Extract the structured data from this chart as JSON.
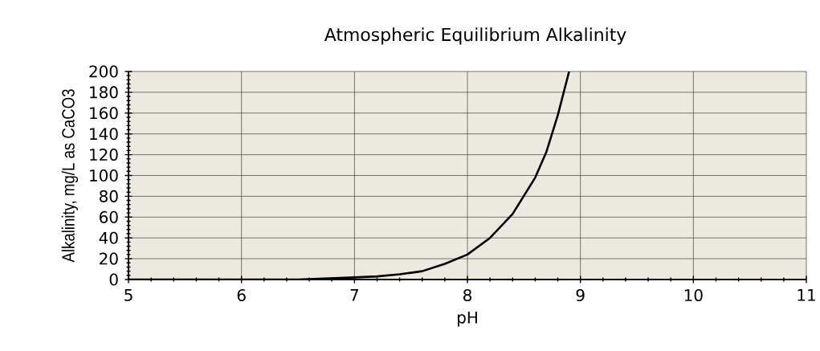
{
  "chart_data": {
    "type": "line",
    "title": "Atmospheric Equilibrium Alkalinity",
    "xlabel": "pH",
    "ylabel": "Alkalinity, mg/L as CaCO3",
    "x": [
      5,
      6,
      6.5,
      7,
      7.2,
      7.4,
      7.6,
      7.8,
      8,
      8.2,
      8.4,
      8.6,
      8.7,
      8.8,
      8.9
    ],
    "values": [
      0,
      0,
      0,
      2,
      3,
      5,
      8,
      15,
      24,
      40,
      63,
      98,
      123,
      158,
      200
    ],
    "color": "#000000",
    "xlim": [
      5,
      11
    ],
    "ylim": [
      0,
      200
    ],
    "xticks": [
      5,
      6,
      7,
      8,
      9,
      10,
      11
    ],
    "yticks": [
      0,
      20,
      40,
      60,
      80,
      100,
      120,
      140,
      160,
      180,
      200
    ],
    "grid": true
  }
}
